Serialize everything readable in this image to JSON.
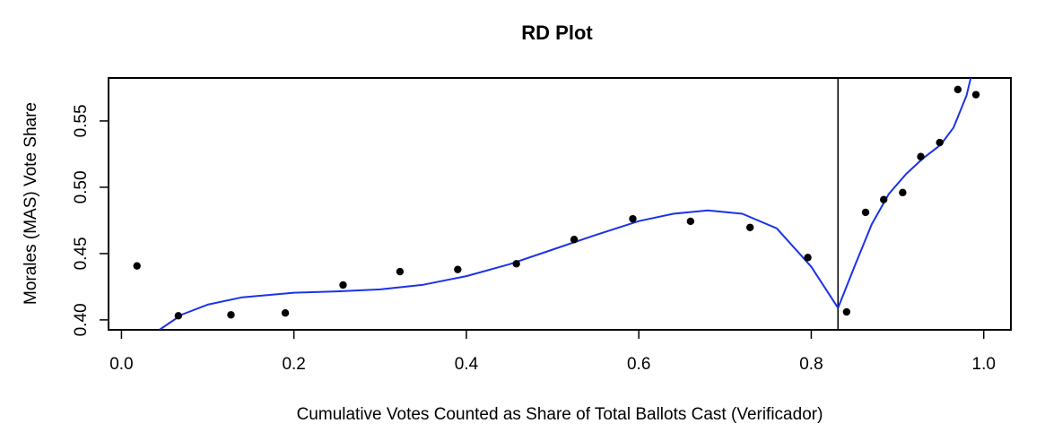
{
  "chart_data": {
    "type": "scatter",
    "title": "RD Plot",
    "xlabel": "Cumulative Votes Counted as Share of Total Ballots Cast (Verificador)",
    "ylabel": "Morales (MAS) Vote Share",
    "xlim": [
      -0.015,
      1.0315
    ],
    "ylim": [
      0.3925,
      0.5824
    ],
    "x_ticks": [
      "0.0",
      "0.2",
      "0.4",
      "0.6",
      "0.8",
      "1.0"
    ],
    "x_tick_values": [
      0.0,
      0.2,
      0.4,
      0.6,
      0.8,
      1.0
    ],
    "y_ticks": [
      "0.40",
      "0.45",
      "0.50",
      "0.55"
    ],
    "y_tick_values": [
      0.4,
      0.45,
      0.5,
      0.55
    ],
    "grid": false,
    "cutoff": 0.831,
    "colors": {
      "points": "#000000",
      "fit": "#1a33e6",
      "cutoff_line": "#000000"
    },
    "points": [
      {
        "x": 0.018,
        "y": 0.4407
      },
      {
        "x": 0.066,
        "y": 0.4031
      },
      {
        "x": 0.127,
        "y": 0.4038
      },
      {
        "x": 0.19,
        "y": 0.4052
      },
      {
        "x": 0.257,
        "y": 0.4263
      },
      {
        "x": 0.323,
        "y": 0.4364
      },
      {
        "x": 0.39,
        "y": 0.438
      },
      {
        "x": 0.458,
        "y": 0.4423
      },
      {
        "x": 0.525,
        "y": 0.4606
      },
      {
        "x": 0.593,
        "y": 0.4762
      },
      {
        "x": 0.66,
        "y": 0.4743
      },
      {
        "x": 0.729,
        "y": 0.4697
      },
      {
        "x": 0.796,
        "y": 0.447
      },
      {
        "x": 0.841,
        "y": 0.406
      },
      {
        "x": 0.863,
        "y": 0.4811
      },
      {
        "x": 0.884,
        "y": 0.4907
      },
      {
        "x": 0.906,
        "y": 0.496
      },
      {
        "x": 0.927,
        "y": 0.5231
      },
      {
        "x": 0.949,
        "y": 0.5337
      },
      {
        "x": 0.97,
        "y": 0.5737
      },
      {
        "x": 0.991,
        "y": 0.5698
      }
    ],
    "fit_left": [
      {
        "x": 0.044,
        "y": 0.3925
      },
      {
        "x": 0.07,
        "y": 0.404
      },
      {
        "x": 0.1,
        "y": 0.4115
      },
      {
        "x": 0.14,
        "y": 0.417
      },
      {
        "x": 0.2,
        "y": 0.4205
      },
      {
        "x": 0.25,
        "y": 0.4215
      },
      {
        "x": 0.3,
        "y": 0.423
      },
      {
        "x": 0.35,
        "y": 0.4265
      },
      {
        "x": 0.4,
        "y": 0.433
      },
      {
        "x": 0.45,
        "y": 0.442
      },
      {
        "x": 0.5,
        "y": 0.453
      },
      {
        "x": 0.55,
        "y": 0.464
      },
      {
        "x": 0.6,
        "y": 0.4745
      },
      {
        "x": 0.64,
        "y": 0.48
      },
      {
        "x": 0.68,
        "y": 0.4825
      },
      {
        "x": 0.72,
        "y": 0.48
      },
      {
        "x": 0.76,
        "y": 0.469
      },
      {
        "x": 0.8,
        "y": 0.44
      },
      {
        "x": 0.831,
        "y": 0.409
      }
    ],
    "fit_right": [
      {
        "x": 0.831,
        "y": 0.409
      },
      {
        "x": 0.85,
        "y": 0.44
      },
      {
        "x": 0.87,
        "y": 0.472
      },
      {
        "x": 0.89,
        "y": 0.495
      },
      {
        "x": 0.91,
        "y": 0.51
      },
      {
        "x": 0.93,
        "y": 0.522
      },
      {
        "x": 0.95,
        "y": 0.532
      },
      {
        "x": 0.965,
        "y": 0.545
      },
      {
        "x": 0.98,
        "y": 0.569
      },
      {
        "x": 0.985,
        "y": 0.5824
      }
    ]
  }
}
